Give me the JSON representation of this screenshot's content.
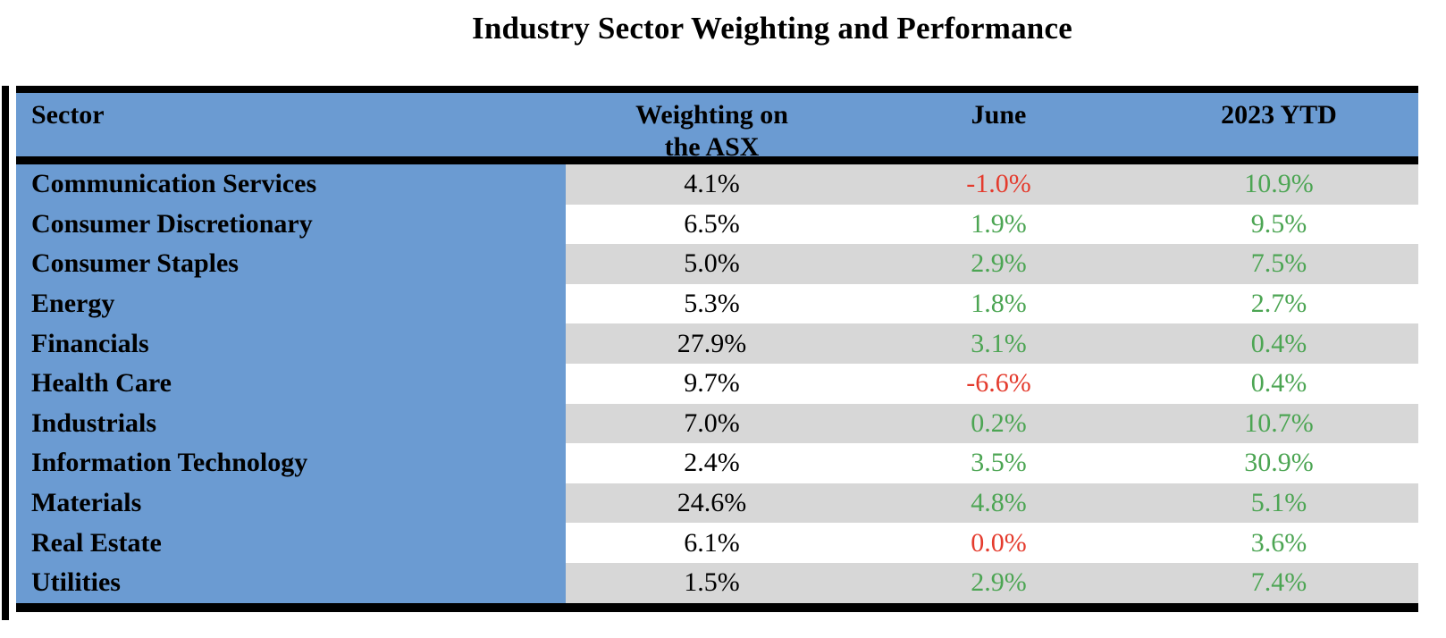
{
  "title": "Industry Sector Weighting and Performance",
  "colors": {
    "header_blue": "#6B9BD2",
    "row_gray": "#D7D7D7",
    "positive_green": "#4CA553",
    "negative_red": "#E43B2D",
    "border_black": "#000000"
  },
  "table": {
    "header": {
      "sector": "Sector",
      "weighting_line1": "Weighting on",
      "weighting_line2": "the ASX",
      "june": "June",
      "ytd": "2023 YTD"
    },
    "rows": [
      {
        "sector": "Communication Services",
        "weighting": "4.1%",
        "june": "-1.0%",
        "june_tone": "negative",
        "ytd": "10.9%",
        "ytd_tone": "positive"
      },
      {
        "sector": "Consumer Discretionary",
        "weighting": "6.5%",
        "june": "1.9%",
        "june_tone": "positive",
        "ytd": "9.5%",
        "ytd_tone": "positive"
      },
      {
        "sector": "Consumer Staples",
        "weighting": "5.0%",
        "june": "2.9%",
        "june_tone": "positive",
        "ytd": "7.5%",
        "ytd_tone": "positive"
      },
      {
        "sector": "Energy",
        "weighting": "5.3%",
        "june": "1.8%",
        "june_tone": "positive",
        "ytd": "2.7%",
        "ytd_tone": "positive"
      },
      {
        "sector": "Financials",
        "weighting": "27.9%",
        "june": "3.1%",
        "june_tone": "positive",
        "ytd": "0.4%",
        "ytd_tone": "positive"
      },
      {
        "sector": "Health Care",
        "weighting": "9.7%",
        "june": "-6.6%",
        "june_tone": "negative",
        "ytd": "0.4%",
        "ytd_tone": "positive"
      },
      {
        "sector": "Industrials",
        "weighting": "7.0%",
        "june": "0.2%",
        "june_tone": "positive",
        "ytd": "10.7%",
        "ytd_tone": "positive"
      },
      {
        "sector": "Information Technology",
        "weighting": "2.4%",
        "june": "3.5%",
        "june_tone": "positive",
        "ytd": "30.9%",
        "ytd_tone": "positive"
      },
      {
        "sector": "Materials",
        "weighting": "24.6%",
        "june": "4.8%",
        "june_tone": "positive",
        "ytd": "5.1%",
        "ytd_tone": "positive"
      },
      {
        "sector": "Real Estate",
        "weighting": "6.1%",
        "june": "0.0%",
        "june_tone": "negative",
        "ytd": "3.6%",
        "ytd_tone": "positive"
      },
      {
        "sector": "Utilities",
        "weighting": "1.5%",
        "june": "2.9%",
        "june_tone": "positive",
        "ytd": "7.4%",
        "ytd_tone": "positive"
      }
    ]
  },
  "chart_data": {
    "type": "table",
    "title": "Industry Sector Weighting and Performance",
    "columns": [
      "Sector",
      "Weighting on the ASX",
      "June",
      "2023 YTD"
    ],
    "rows": [
      [
        "Communication Services",
        "4.1%",
        "-1.0%",
        "10.9%"
      ],
      [
        "Consumer Discretionary",
        "6.5%",
        "1.9%",
        "9.5%"
      ],
      [
        "Consumer Staples",
        "5.0%",
        "2.9%",
        "7.5%"
      ],
      [
        "Energy",
        "5.3%",
        "1.8%",
        "2.7%"
      ],
      [
        "Financials",
        "27.9%",
        "3.1%",
        "0.4%"
      ],
      [
        "Health Care",
        "9.7%",
        "-6.6%",
        "0.4%"
      ],
      [
        "Industrials",
        "7.0%",
        "0.2%",
        "10.7%"
      ],
      [
        "Information Technology",
        "2.4%",
        "3.5%",
        "30.9%"
      ],
      [
        "Materials",
        "24.6%",
        "4.8%",
        "5.1%"
      ],
      [
        "Real Estate",
        "6.1%",
        "0.0%",
        "3.6%"
      ],
      [
        "Utilities",
        "1.5%",
        "2.9%",
        "7.4%"
      ]
    ],
    "value_color_rule": "June: red when -1.0%, -6.6%, 0.0%; green otherwise. 2023 YTD: all green.",
    "row_shading": "alternating gray starting with first data row; Sector column solid blue"
  }
}
